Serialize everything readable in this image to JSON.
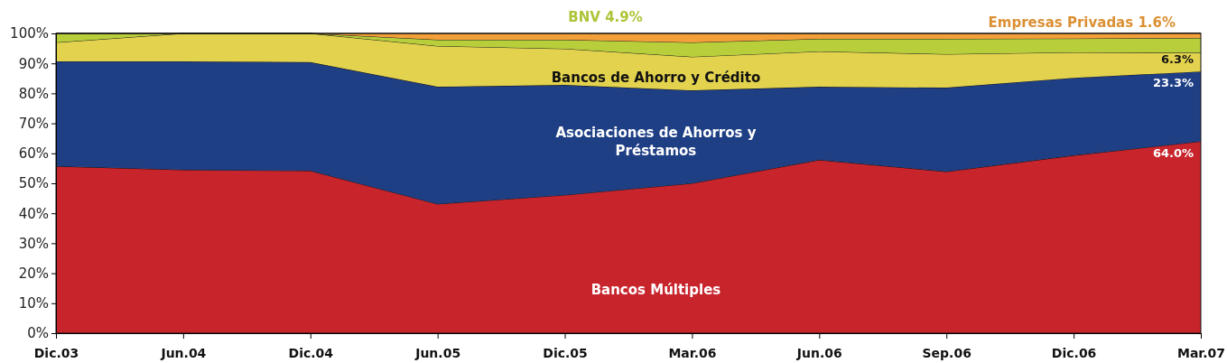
{
  "chart_data": {
    "type": "area",
    "stacked": true,
    "legend": false,
    "grid": false,
    "categories": [
      "Dic.03",
      "Jun.04",
      "Dic.04",
      "Jun.05",
      "Dic.05",
      "Mar.06",
      "Jun.06",
      "Sep.06",
      "Dic.06",
      "Mar.07"
    ],
    "ylim": [
      0,
      100
    ],
    "yticks": [
      {
        "value": 0,
        "label": "0%"
      },
      {
        "value": 10,
        "label": "10%"
      },
      {
        "value": 20,
        "label": "20%"
      },
      {
        "value": 30,
        "label": "30%"
      },
      {
        "value": 40,
        "label": "40%"
      },
      {
        "value": 50,
        "label": "50%"
      },
      {
        "value": 60,
        "label": "60%"
      },
      {
        "value": 70,
        "label": "70%"
      },
      {
        "value": 80,
        "label": "80%"
      },
      {
        "value": 90,
        "label": "90%"
      },
      {
        "value": 100,
        "label": "100%"
      }
    ],
    "series": [
      {
        "name": "Bancos  Múltiples",
        "color": "#c8242c",
        "values": [
          55.7,
          54.5,
          54.2,
          43.1,
          46.1,
          50.0,
          57.8,
          53.9,
          59.3,
          64.0
        ],
        "value_labels": [
          null,
          null,
          null,
          null,
          null,
          null,
          null,
          null,
          null,
          "64.0%"
        ]
      },
      {
        "name": "Asociaciones de Ahorros y Préstamos",
        "color": "#1f3f85",
        "values": [
          35.0,
          36.2,
          36.2,
          39.1,
          36.7,
          31.0,
          24.4,
          28.0,
          25.9,
          23.3
        ],
        "value_labels": [
          null,
          null,
          null,
          null,
          null,
          null,
          null,
          null,
          null,
          "23.3%"
        ]
      },
      {
        "name": "Bancos de Ahorro y Crédito",
        "color": "#e3d24e",
        "values": [
          6.3,
          9.3,
          9.6,
          13.6,
          12.1,
          11.2,
          11.8,
          11.2,
          8.5,
          6.3
        ],
        "value_labels": [
          null,
          null,
          null,
          null,
          null,
          null,
          null,
          null,
          null,
          "6.3%"
        ]
      },
      {
        "name": "BNV",
        "color": "#b8cf3b",
        "values": [
          3.0,
          0,
          0,
          2.1,
          3.0,
          4.8,
          4.2,
          5.1,
          4.6,
          4.9
        ],
        "value_labels": [
          null,
          null,
          null,
          null,
          null,
          null,
          null,
          null,
          null,
          "4.9%"
        ]
      },
      {
        "name": "Empresas Privadas",
        "color": "#f4a03a",
        "values": [
          0,
          0,
          0,
          2.1,
          2.1,
          3.0,
          1.8,
          1.8,
          1.7,
          1.6
        ],
        "value_labels": [
          null,
          null,
          null,
          null,
          null,
          null,
          null,
          null,
          null,
          "1.6%"
        ]
      }
    ]
  }
}
